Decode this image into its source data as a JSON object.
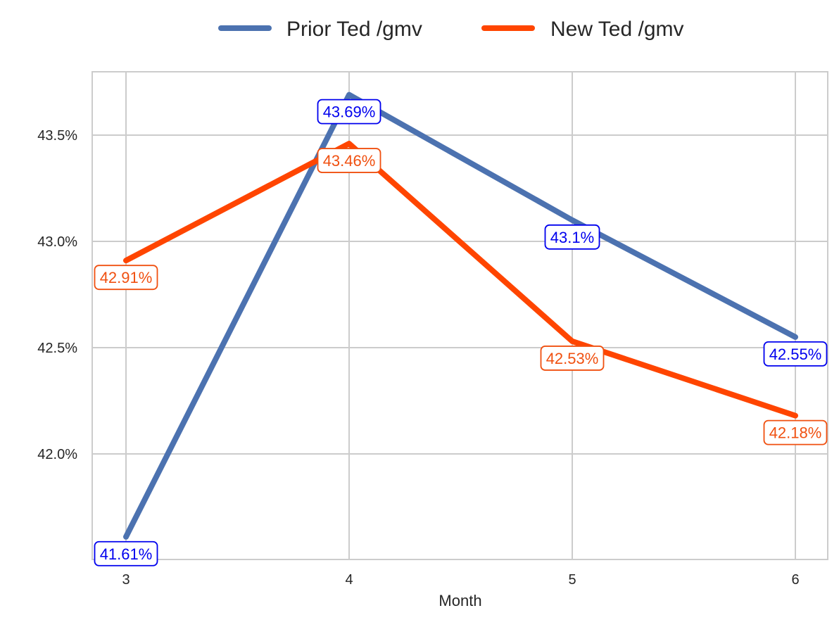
{
  "chart_data": {
    "type": "line",
    "x": [
      3,
      4,
      5,
      6
    ],
    "xlabel": "Month",
    "ylabel": "",
    "ylim": [
      41.5,
      43.8
    ],
    "yticks": [
      42.0,
      42.5,
      43.0,
      43.5
    ],
    "ytick_labels": [
      "42.0%",
      "42.5%",
      "43.0%",
      "43.5%"
    ],
    "xtick_labels": [
      "3",
      "4",
      "5",
      "6"
    ],
    "grid": true,
    "legend_position": "top-center",
    "series": [
      {
        "name": "Prior Ted /gmv",
        "color": "#4c72b0",
        "label_color": "#0000ee",
        "values": [
          41.61,
          43.69,
          43.1,
          42.55
        ],
        "labels": [
          "41.61%",
          "43.69%",
          "43.1%",
          "42.55%"
        ]
      },
      {
        "name": "New Ted /gmv",
        "color": "#ff4500",
        "label_color": "#f05010",
        "values": [
          42.91,
          43.46,
          42.53,
          42.18
        ],
        "labels": [
          "42.91%",
          "43.46%",
          "42.53%",
          "42.18%"
        ]
      }
    ]
  }
}
